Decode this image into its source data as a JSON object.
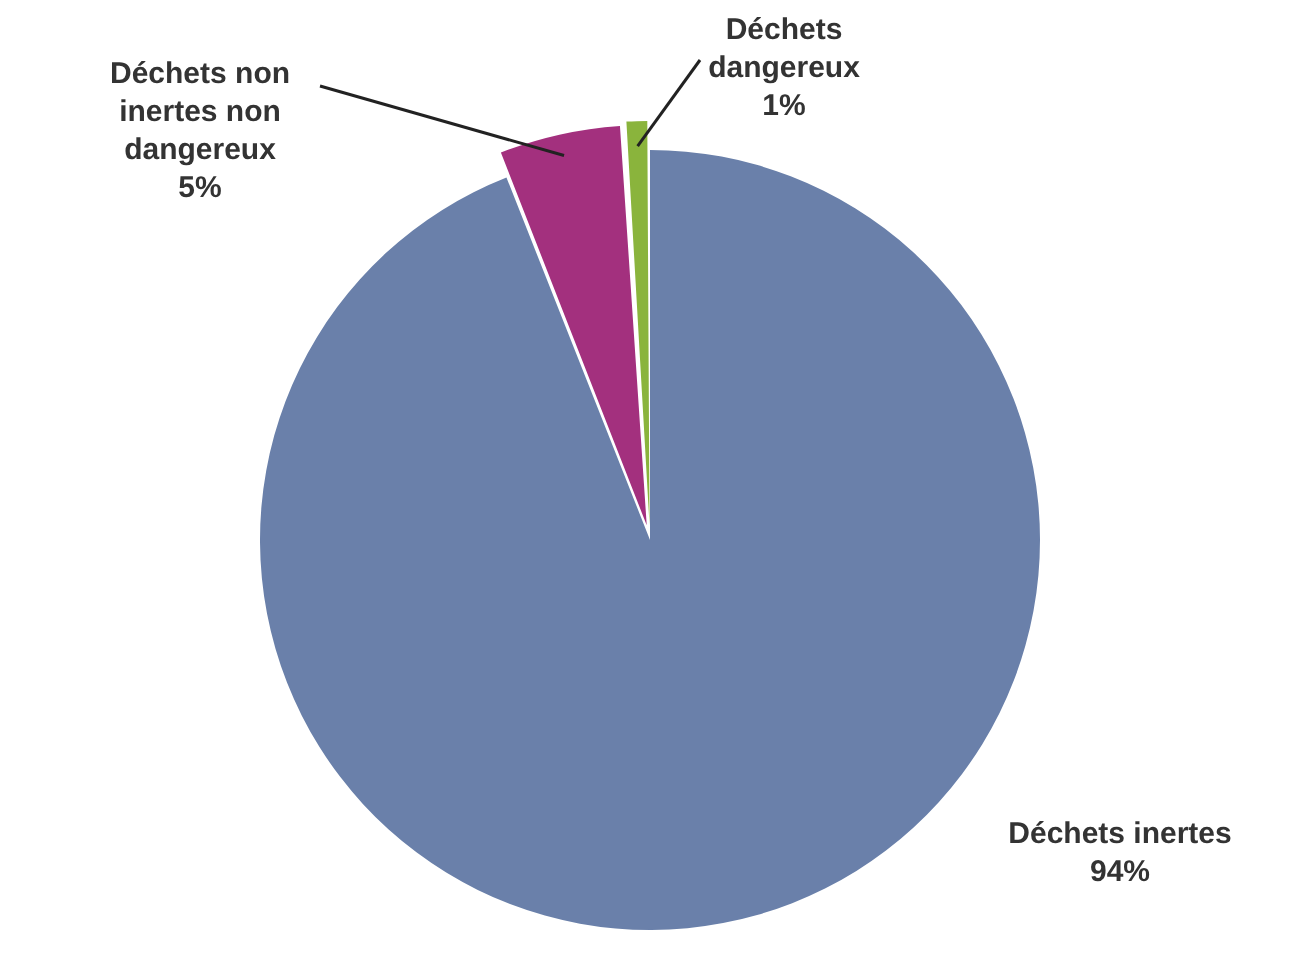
{
  "chart_data": {
    "type": "pie",
    "categories": [
      "Déchets inertes",
      "Déchets non inertes non dangereux",
      "Déchets dangereux"
    ],
    "values": [
      94,
      5,
      1
    ],
    "colors": [
      "#6a80aa",
      "#a3307e",
      "#8ab43c"
    ],
    "value_labels": [
      "94%",
      "5%",
      "1%"
    ],
    "legend": false
  }
}
